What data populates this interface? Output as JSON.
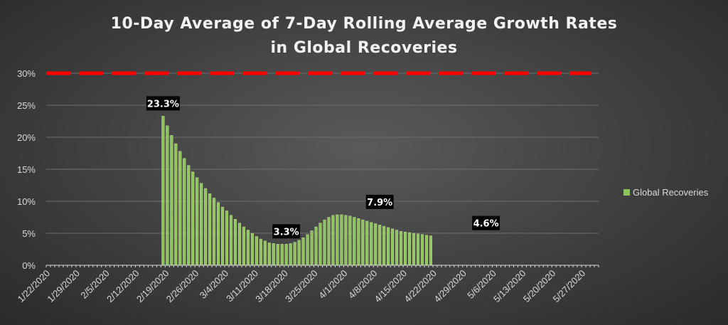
{
  "chart_data": {
    "type": "bar",
    "title_lines": [
      "10-Day Average of 7-Day Rolling Average Growth Rates",
      "in Global Recoveries"
    ],
    "y_tick_labels": [
      "0%",
      "5%",
      "10%",
      "15%",
      "20%",
      "25%",
      "30%"
    ],
    "ylim": [
      0,
      0.3
    ],
    "grid": true,
    "x_start": "2020-01-22",
    "x_end": "2020-05-31",
    "x_tick_labels": [
      "1/22/2020",
      "1/29/2020",
      "2/5/2020",
      "2/12/2020",
      "2/19/2020",
      "2/26/2020",
      "3/4/2020",
      "3/11/2020",
      "3/18/2020",
      "3/25/2020",
      "4/1/2020",
      "4/8/2020",
      "4/15/2020",
      "4/22/2020",
      "4/29/2020",
      "5/6/2020",
      "5/13/2020",
      "5/20/2020",
      "5/27/2020"
    ],
    "reference_line": {
      "value": 0.3,
      "color": "#ff0000",
      "style": "dashed"
    },
    "series": [
      {
        "name": "Global Recoveries",
        "color": "#8fc45a",
        "start_date": "2020-02-18",
        "values": [
          0.233,
          0.218,
          0.203,
          0.19,
          0.178,
          0.167,
          0.156,
          0.146,
          0.137,
          0.128,
          0.12,
          0.112,
          0.105,
          0.098,
          0.091,
          0.085,
          0.078,
          0.072,
          0.066,
          0.06,
          0.055,
          0.05,
          0.045,
          0.041,
          0.038,
          0.035,
          0.034,
          0.033,
          0.033,
          0.033,
          0.034,
          0.036,
          0.039,
          0.043,
          0.048,
          0.054,
          0.06,
          0.066,
          0.071,
          0.075,
          0.078,
          0.079,
          0.079,
          0.078,
          0.077,
          0.075,
          0.073,
          0.071,
          0.069,
          0.067,
          0.065,
          0.063,
          0.061,
          0.059,
          0.057,
          0.055,
          0.053,
          0.052,
          0.051,
          0.05,
          0.049,
          0.048,
          0.047,
          0.046
        ]
      }
    ],
    "data_labels": [
      {
        "date": "2020-02-18",
        "value": 0.233,
        "text": "23.3%"
      },
      {
        "date": "2020-03-18",
        "value": 0.033,
        "text": "3.3%"
      },
      {
        "date": "2020-04-09",
        "value": 0.079,
        "text": "7.9%"
      },
      {
        "date": "2020-05-04",
        "value": 0.046,
        "text": "4.6%"
      }
    ],
    "legend": {
      "position": "right",
      "entries": [
        "Global Recoveries"
      ]
    }
  }
}
